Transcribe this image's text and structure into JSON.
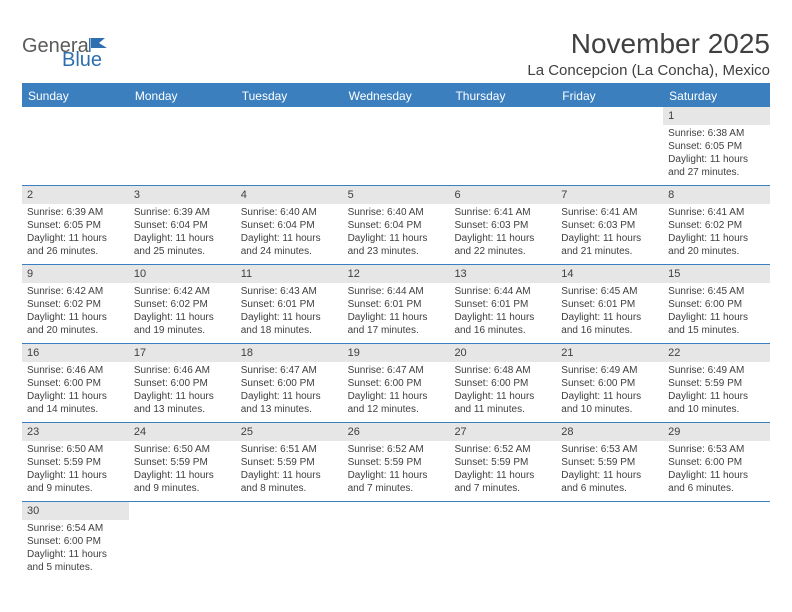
{
  "logo": {
    "part1": "Genera",
    "part2": "Blue"
  },
  "title": "November 2025",
  "location": "La Concepcion (La Concha), Mexico",
  "day_names": [
    "Sunday",
    "Monday",
    "Tuesday",
    "Wednesday",
    "Thursday",
    "Friday",
    "Saturday"
  ],
  "colors": {
    "header_band": "#3b7fbf",
    "daynum_bg": "#e6e6e6",
    "text": "#404040",
    "logo_blue": "#2f6fb0"
  },
  "weeks": [
    [
      {
        "n": "",
        "sr": "",
        "ss": "",
        "dl": ""
      },
      {
        "n": "",
        "sr": "",
        "ss": "",
        "dl": ""
      },
      {
        "n": "",
        "sr": "",
        "ss": "",
        "dl": ""
      },
      {
        "n": "",
        "sr": "",
        "ss": "",
        "dl": ""
      },
      {
        "n": "",
        "sr": "",
        "ss": "",
        "dl": ""
      },
      {
        "n": "",
        "sr": "",
        "ss": "",
        "dl": ""
      },
      {
        "n": "1",
        "sr": "Sunrise: 6:38 AM",
        "ss": "Sunset: 6:05 PM",
        "dl": "Daylight: 11 hours and 27 minutes."
      }
    ],
    [
      {
        "n": "2",
        "sr": "Sunrise: 6:39 AM",
        "ss": "Sunset: 6:05 PM",
        "dl": "Daylight: 11 hours and 26 minutes."
      },
      {
        "n": "3",
        "sr": "Sunrise: 6:39 AM",
        "ss": "Sunset: 6:04 PM",
        "dl": "Daylight: 11 hours and 25 minutes."
      },
      {
        "n": "4",
        "sr": "Sunrise: 6:40 AM",
        "ss": "Sunset: 6:04 PM",
        "dl": "Daylight: 11 hours and 24 minutes."
      },
      {
        "n": "5",
        "sr": "Sunrise: 6:40 AM",
        "ss": "Sunset: 6:04 PM",
        "dl": "Daylight: 11 hours and 23 minutes."
      },
      {
        "n": "6",
        "sr": "Sunrise: 6:41 AM",
        "ss": "Sunset: 6:03 PM",
        "dl": "Daylight: 11 hours and 22 minutes."
      },
      {
        "n": "7",
        "sr": "Sunrise: 6:41 AM",
        "ss": "Sunset: 6:03 PM",
        "dl": "Daylight: 11 hours and 21 minutes."
      },
      {
        "n": "8",
        "sr": "Sunrise: 6:41 AM",
        "ss": "Sunset: 6:02 PM",
        "dl": "Daylight: 11 hours and 20 minutes."
      }
    ],
    [
      {
        "n": "9",
        "sr": "Sunrise: 6:42 AM",
        "ss": "Sunset: 6:02 PM",
        "dl": "Daylight: 11 hours and 20 minutes."
      },
      {
        "n": "10",
        "sr": "Sunrise: 6:42 AM",
        "ss": "Sunset: 6:02 PM",
        "dl": "Daylight: 11 hours and 19 minutes."
      },
      {
        "n": "11",
        "sr": "Sunrise: 6:43 AM",
        "ss": "Sunset: 6:01 PM",
        "dl": "Daylight: 11 hours and 18 minutes."
      },
      {
        "n": "12",
        "sr": "Sunrise: 6:44 AM",
        "ss": "Sunset: 6:01 PM",
        "dl": "Daylight: 11 hours and 17 minutes."
      },
      {
        "n": "13",
        "sr": "Sunrise: 6:44 AM",
        "ss": "Sunset: 6:01 PM",
        "dl": "Daylight: 11 hours and 16 minutes."
      },
      {
        "n": "14",
        "sr": "Sunrise: 6:45 AM",
        "ss": "Sunset: 6:01 PM",
        "dl": "Daylight: 11 hours and 16 minutes."
      },
      {
        "n": "15",
        "sr": "Sunrise: 6:45 AM",
        "ss": "Sunset: 6:00 PM",
        "dl": "Daylight: 11 hours and 15 minutes."
      }
    ],
    [
      {
        "n": "16",
        "sr": "Sunrise: 6:46 AM",
        "ss": "Sunset: 6:00 PM",
        "dl": "Daylight: 11 hours and 14 minutes."
      },
      {
        "n": "17",
        "sr": "Sunrise: 6:46 AM",
        "ss": "Sunset: 6:00 PM",
        "dl": "Daylight: 11 hours and 13 minutes."
      },
      {
        "n": "18",
        "sr": "Sunrise: 6:47 AM",
        "ss": "Sunset: 6:00 PM",
        "dl": "Daylight: 11 hours and 13 minutes."
      },
      {
        "n": "19",
        "sr": "Sunrise: 6:47 AM",
        "ss": "Sunset: 6:00 PM",
        "dl": "Daylight: 11 hours and 12 minutes."
      },
      {
        "n": "20",
        "sr": "Sunrise: 6:48 AM",
        "ss": "Sunset: 6:00 PM",
        "dl": "Daylight: 11 hours and 11 minutes."
      },
      {
        "n": "21",
        "sr": "Sunrise: 6:49 AM",
        "ss": "Sunset: 6:00 PM",
        "dl": "Daylight: 11 hours and 10 minutes."
      },
      {
        "n": "22",
        "sr": "Sunrise: 6:49 AM",
        "ss": "Sunset: 5:59 PM",
        "dl": "Daylight: 11 hours and 10 minutes."
      }
    ],
    [
      {
        "n": "23",
        "sr": "Sunrise: 6:50 AM",
        "ss": "Sunset: 5:59 PM",
        "dl": "Daylight: 11 hours and 9 minutes."
      },
      {
        "n": "24",
        "sr": "Sunrise: 6:50 AM",
        "ss": "Sunset: 5:59 PM",
        "dl": "Daylight: 11 hours and 9 minutes."
      },
      {
        "n": "25",
        "sr": "Sunrise: 6:51 AM",
        "ss": "Sunset: 5:59 PM",
        "dl": "Daylight: 11 hours and 8 minutes."
      },
      {
        "n": "26",
        "sr": "Sunrise: 6:52 AM",
        "ss": "Sunset: 5:59 PM",
        "dl": "Daylight: 11 hours and 7 minutes."
      },
      {
        "n": "27",
        "sr": "Sunrise: 6:52 AM",
        "ss": "Sunset: 5:59 PM",
        "dl": "Daylight: 11 hours and 7 minutes."
      },
      {
        "n": "28",
        "sr": "Sunrise: 6:53 AM",
        "ss": "Sunset: 5:59 PM",
        "dl": "Daylight: 11 hours and 6 minutes."
      },
      {
        "n": "29",
        "sr": "Sunrise: 6:53 AM",
        "ss": "Sunset: 6:00 PM",
        "dl": "Daylight: 11 hours and 6 minutes."
      }
    ],
    [
      {
        "n": "30",
        "sr": "Sunrise: 6:54 AM",
        "ss": "Sunset: 6:00 PM",
        "dl": "Daylight: 11 hours and 5 minutes."
      },
      {
        "n": "",
        "sr": "",
        "ss": "",
        "dl": ""
      },
      {
        "n": "",
        "sr": "",
        "ss": "",
        "dl": ""
      },
      {
        "n": "",
        "sr": "",
        "ss": "",
        "dl": ""
      },
      {
        "n": "",
        "sr": "",
        "ss": "",
        "dl": ""
      },
      {
        "n": "",
        "sr": "",
        "ss": "",
        "dl": ""
      },
      {
        "n": "",
        "sr": "",
        "ss": "",
        "dl": ""
      }
    ]
  ]
}
